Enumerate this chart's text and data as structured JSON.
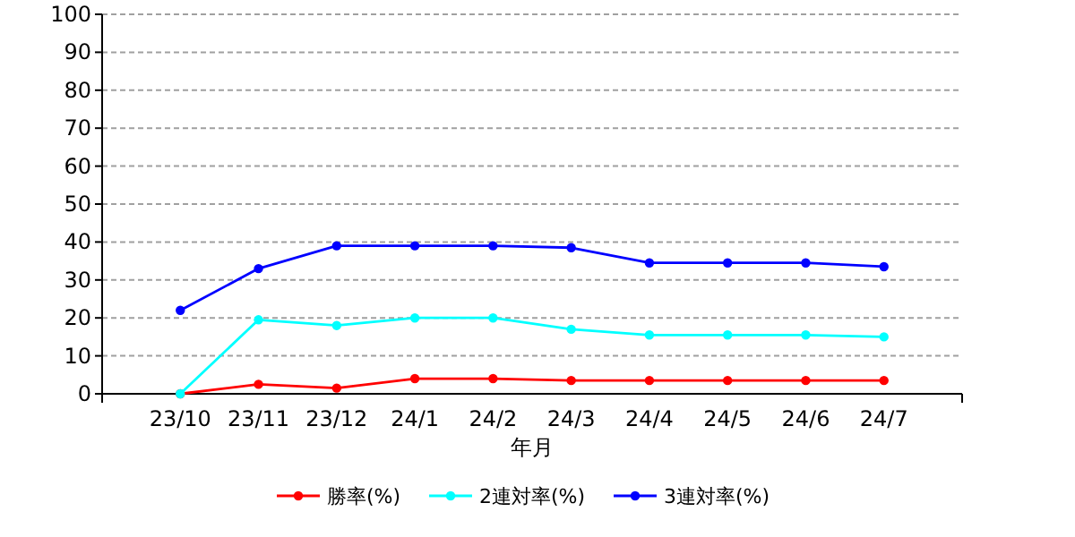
{
  "chart_data": {
    "type": "line",
    "xlabel": "年月",
    "categories": [
      "23/10",
      "23/11",
      "23/12",
      "24/1",
      "24/2",
      "24/3",
      "24/4",
      "24/5",
      "24/6",
      "24/7"
    ],
    "series": [
      {
        "name": "勝率(%)",
        "color": "#ff0000",
        "values": [
          0,
          2.5,
          1.5,
          4,
          4,
          3.5,
          3.5,
          3.5,
          3.5,
          3.5
        ]
      },
      {
        "name": "2連対率(%)",
        "color": "#00ffff",
        "values": [
          0,
          19.5,
          18,
          20,
          20,
          17,
          15.5,
          15.5,
          15.5,
          15
        ]
      },
      {
        "name": "3連対率(%)",
        "color": "#0000ff",
        "values": [
          22,
          33,
          39,
          39,
          39,
          38.5,
          34.5,
          34.5,
          34.5,
          33.5
        ]
      }
    ],
    "ylim": [
      0,
      100
    ],
    "yticks": [
      0,
      10,
      20,
      30,
      40,
      50,
      60,
      70,
      80,
      90,
      100
    ],
    "grid": "y",
    "legend": "bottom",
    "marker": "circle",
    "line_style": "solid"
  }
}
